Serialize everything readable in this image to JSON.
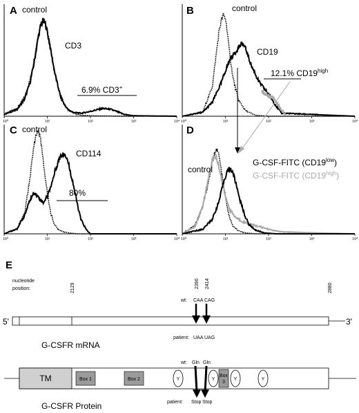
{
  "chart_data": [
    {
      "type": "line",
      "panel": "A",
      "x_scale": "log",
      "xlim": [
        1,
        10000
      ],
      "ticks": [
        "10⁰",
        "10¹",
        "10²",
        "10³",
        "10⁴"
      ],
      "series": [
        {
          "name": "control",
          "style": "dotted",
          "x": [
            1,
            2,
            3,
            4,
            5,
            6,
            7,
            8,
            9,
            10,
            12,
            15,
            20,
            25,
            30,
            40,
            60,
            100,
            300,
            1000,
            10000
          ],
          "y": [
            0.02,
            0.08,
            0.2,
            0.38,
            0.6,
            0.82,
            0.96,
            1.0,
            0.97,
            0.88,
            0.7,
            0.45,
            0.22,
            0.12,
            0.07,
            0.03,
            0.01,
            0.005,
            0.002,
            0.0,
            0.0
          ]
        },
        {
          "name": "CD3",
          "style": "solid",
          "x": [
            1,
            2,
            3,
            4,
            5,
            6,
            7,
            8,
            9,
            10,
            12,
            15,
            20,
            25,
            30,
            40,
            60,
            100,
            150,
            200,
            300,
            400,
            600,
            1000,
            10000
          ],
          "y": [
            0.02,
            0.07,
            0.18,
            0.35,
            0.56,
            0.78,
            0.93,
            0.99,
            0.96,
            0.87,
            0.68,
            0.44,
            0.21,
            0.12,
            0.07,
            0.04,
            0.03,
            0.05,
            0.07,
            0.08,
            0.07,
            0.05,
            0.02,
            0.005,
            0.0
          ]
        }
      ],
      "gates": [
        {
          "label": "6.9% CD3",
          "label_sup": "+",
          "x_range": [
            80,
            1000
          ]
        }
      ]
    },
    {
      "type": "line",
      "panel": "B",
      "x_scale": "log",
      "xlim": [
        1,
        10000
      ],
      "ticks": [
        "10⁰",
        "10¹",
        "10²",
        "10³",
        "10⁴"
      ],
      "series": [
        {
          "name": "control",
          "style": "dotted",
          "x": [
            1,
            3,
            5,
            7,
            8,
            9,
            10,
            11,
            12,
            15,
            20,
            30,
            50,
            100,
            10000
          ],
          "y": [
            0.0,
            0.04,
            0.3,
            0.82,
            0.95,
            1.0,
            0.97,
            0.85,
            0.68,
            0.38,
            0.16,
            0.05,
            0.01,
            0.0,
            0.0
          ]
        },
        {
          "name": "CD19",
          "style": "solid",
          "x": [
            1,
            3,
            5,
            8,
            10,
            13,
            15,
            20,
            25,
            30,
            40,
            60,
            80,
            100,
            150,
            200,
            10000
          ],
          "y": [
            0.0,
            0.04,
            0.14,
            0.33,
            0.45,
            0.57,
            0.6,
            0.68,
            0.72,
            0.66,
            0.5,
            0.34,
            0.27,
            0.22,
            0.1,
            0.03,
            0.0
          ]
        },
        {
          "name": "CD19 high",
          "style": "gray",
          "x": [
            70,
            80,
            100,
            130,
            160,
            200,
            250
          ],
          "y": [
            0.25,
            0.22,
            0.2,
            0.18,
            0.12,
            0.06,
            0.01
          ]
        }
      ],
      "gates": [
        {
          "label": "12.1% CD19",
          "label_sup": "high",
          "x_range": [
            70,
            300
          ]
        }
      ]
    },
    {
      "type": "line",
      "panel": "C",
      "x_scale": "log",
      "xlim": [
        1,
        10000
      ],
      "ticks": [
        "10⁰",
        "10¹",
        "10²",
        "10³",
        "10⁴"
      ],
      "series": [
        {
          "name": "control",
          "style": "dotted",
          "x": [
            1,
            2,
            3,
            4,
            5,
            6,
            7,
            8,
            10,
            12,
            15,
            20,
            30,
            50,
            10000
          ],
          "y": [
            0.0,
            0.05,
            0.2,
            0.55,
            0.88,
            1.0,
            0.92,
            0.7,
            0.4,
            0.2,
            0.08,
            0.03,
            0.01,
            0.0,
            0.0
          ]
        },
        {
          "name": "CD114",
          "style": "solid",
          "x": [
            1,
            2,
            3,
            4,
            5,
            6,
            8,
            10,
            13,
            16,
            20,
            25,
            30,
            40,
            50,
            60,
            80,
            100,
            10000
          ],
          "y": [
            0.0,
            0.05,
            0.18,
            0.33,
            0.4,
            0.36,
            0.3,
            0.36,
            0.5,
            0.64,
            0.75,
            0.78,
            0.7,
            0.48,
            0.28,
            0.14,
            0.04,
            0.0,
            0.0
          ]
        }
      ],
      "gates": [
        {
          "label": "80%",
          "x_range": [
            6,
            200
          ]
        }
      ]
    },
    {
      "type": "line",
      "panel": "D",
      "x_scale": "log",
      "xlim": [
        1,
        10000
      ],
      "ticks": [
        "10⁰",
        "10¹",
        "10²",
        "10³",
        "10⁴"
      ],
      "series": [
        {
          "name": "control",
          "style": "dotted",
          "x": [
            1,
            2,
            3,
            4,
            5,
            6,
            7,
            8,
            10,
            12,
            15,
            20,
            30,
            50,
            10000
          ],
          "y": [
            0.0,
            0.1,
            0.3,
            0.55,
            0.78,
            0.92,
            0.86,
            0.68,
            0.4,
            0.2,
            0.08,
            0.03,
            0.01,
            0.0,
            0.0
          ]
        },
        {
          "name": "G-CSF-FITC (CD19 low)",
          "style": "solid",
          "x": [
            1,
            3,
            5,
            7,
            9,
            11,
            13,
            15,
            18,
            22,
            28,
            35,
            50,
            80,
            150,
            10000
          ],
          "y": [
            0.0,
            0.05,
            0.16,
            0.34,
            0.55,
            0.68,
            0.7,
            0.66,
            0.52,
            0.36,
            0.2,
            0.1,
            0.04,
            0.01,
            0.0,
            0.0
          ]
        },
        {
          "name": "G-CSF-FITC (CD19 high)",
          "style": "gray",
          "x": [
            1,
            2,
            3,
            4,
            5,
            6,
            7,
            8,
            10,
            13,
            17,
            25,
            40,
            70,
            120,
            200,
            10000
          ],
          "y": [
            0.0,
            0.08,
            0.3,
            0.6,
            0.8,
            0.84,
            0.74,
            0.6,
            0.4,
            0.25,
            0.18,
            0.13,
            0.1,
            0.07,
            0.04,
            0.02,
            0.0
          ]
        }
      ]
    }
  ],
  "panelA": {
    "letter": "A",
    "control": "control",
    "cd3": "CD3",
    "gate_text": "6.9% CD3",
    "gate_sup": "+"
  },
  "panelB": {
    "letter": "B",
    "control": "control",
    "cd19": "CD19",
    "gate_text": "12.1% CD19",
    "gate_sup": "high"
  },
  "panelC": {
    "letter": "C",
    "control": "control",
    "cd114": "CD114",
    "gate_text": "80%"
  },
  "panelD": {
    "letter": "D",
    "control": "control",
    "low_text": "G-CSF-FITC (CD19",
    "low_sup": "low",
    "low_close": ")",
    "high_text": "G-CSF-FITC (CD19",
    "high_sup": "high",
    "high_close": ")"
  },
  "ticks": [
    "10⁰",
    "10¹",
    "10²",
    "10³",
    "10⁴"
  ],
  "panelE": {
    "letter": "E",
    "nucleotide_label_1": "nucleotide",
    "nucleotide_label_2": "position:",
    "pos_2129": "2129",
    "pos_2390": "2390",
    "pos_2414": "2414",
    "pos_2880": "2880",
    "wt_label": "wt:",
    "wt_codon_1": "CAA",
    "wt_codon_2": "CAG",
    "patient_label": "patient:",
    "patient_codon_1": "UAA",
    "patient_codon_2": "UAG",
    "five_prime": "5'",
    "three_prime": "3'",
    "mrna_label": "G-CSFR mRNA",
    "wt_label_2": "wt:",
    "gln_1": "Gln",
    "gln_2": "Gln",
    "tm": "TM",
    "box1": "Box 1",
    "box2": "Box 2",
    "box3_a": "Box",
    "box3_b": "3",
    "y": "Y",
    "patient_label_2": "patient:",
    "stop_1": "Stop",
    "stop_2": "Stop",
    "protein_label": "G-CSFR Protein"
  },
  "colors": {
    "gray_curve": "#a8a8a8",
    "tm_fill": "#d0d0d0",
    "box_fill": "#9a9a9a"
  }
}
